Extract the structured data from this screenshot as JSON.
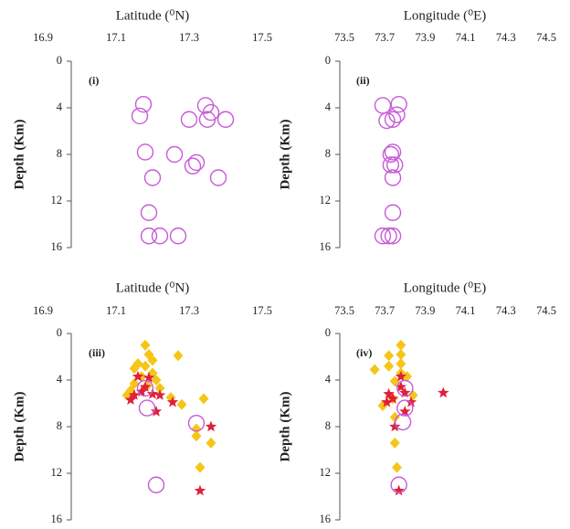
{
  "chart_data": [
    {
      "type": "scatter",
      "xlabel": "Latitude (⁰N)",
      "ylabel": "Depth (Km)",
      "annotation": "(i)",
      "xlim": [
        16.9,
        17.5
      ],
      "xticks": [
        16.9,
        17.1,
        17.3,
        17.5
      ],
      "ylim": [
        0,
        16
      ],
      "yticks": [
        0,
        4,
        8,
        12,
        16
      ],
      "y_inverted": true,
      "series": [
        {
          "color": "#c85ad8",
          "marker": "circle",
          "x": [
            17.175,
            17.165,
            17.345,
            17.36,
            17.35,
            17.4,
            17.3,
            17.18,
            17.26,
            17.32,
            17.31,
            17.2,
            17.38,
            17.19,
            17.19,
            17.22,
            17.27
          ],
          "values": [
            3.7,
            4.7,
            3.8,
            4.4,
            5.0,
            5.0,
            5.0,
            7.8,
            8.0,
            8.7,
            9.0,
            10.0,
            10.0,
            13.0,
            15.0,
            15.0,
            15.0
          ]
        }
      ]
    },
    {
      "type": "scatter",
      "xlabel": "Longitude (⁰E)",
      "ylabel": "Depth (Km)",
      "annotation": "(ii)",
      "xlim": [
        73.5,
        74.5
      ],
      "xticks": [
        73.5,
        73.7,
        73.9,
        74.1,
        74.3,
        74.5
      ],
      "ylim": [
        0,
        16
      ],
      "yticks": [
        0,
        4,
        8,
        12,
        16
      ],
      "y_inverted": true,
      "series": [
        {
          "color": "#c85ad8",
          "marker": "circle",
          "x": [
            73.77,
            73.69,
            73.76,
            73.74,
            73.71,
            73.74,
            73.73,
            73.75,
            73.73,
            73.74,
            73.74,
            73.69,
            73.72,
            73.74
          ],
          "values": [
            3.7,
            3.8,
            4.6,
            5.0,
            5.1,
            7.8,
            8.0,
            8.9,
            8.9,
            10.0,
            13.0,
            15.0,
            15.0,
            15.0
          ]
        }
      ]
    },
    {
      "type": "scatter",
      "xlabel": "Latitude (⁰N)",
      "ylabel": "Depth (Km)",
      "annotation": "(iii)",
      "xlim": [
        16.9,
        17.5
      ],
      "xticks": [
        16.9,
        17.1,
        17.3,
        17.5
      ],
      "ylim": [
        0,
        16
      ],
      "yticks": [
        0,
        4,
        8,
        12,
        16
      ],
      "y_inverted": true,
      "series": [
        {
          "color": "#f5c518",
          "marker": "diamond",
          "x": [
            17.18,
            17.19,
            17.27,
            17.2,
            17.16,
            17.18,
            17.15,
            17.2,
            17.17,
            17.21,
            17.15,
            17.185,
            17.14,
            17.22,
            17.13,
            17.25,
            17.34,
            17.28,
            17.32,
            17.32,
            17.36,
            17.33
          ],
          "values": [
            1.0,
            1.8,
            1.9,
            2.3,
            2.6,
            2.8,
            3.0,
            3.4,
            3.7,
            4.0,
            4.3,
            4.5,
            4.9,
            4.7,
            5.3,
            5.5,
            5.6,
            6.1,
            8.2,
            8.8,
            9.4,
            11.5
          ]
        },
        {
          "color": "#e0203a",
          "marker": "star",
          "x": [
            17.16,
            17.19,
            17.18,
            17.17,
            17.2,
            17.15,
            17.14,
            17.22,
            17.255,
            17.21,
            17.36,
            17.33
          ],
          "values": [
            3.7,
            3.8,
            4.6,
            5.0,
            5.2,
            5.3,
            5.7,
            5.3,
            5.9,
            6.7,
            8.0,
            13.5
          ]
        },
        {
          "color": "#c85ad8",
          "marker": "circle",
          "x": [
            17.18,
            17.185,
            17.32,
            17.21
          ],
          "values": [
            4.7,
            6.4,
            7.7,
            13.0
          ]
        }
      ]
    },
    {
      "type": "scatter",
      "xlabel": "Longitude (⁰E)",
      "ylabel": "Depth (Km)",
      "annotation": "(iv)",
      "xlim": [
        73.5,
        74.5
      ],
      "xticks": [
        73.5,
        73.7,
        73.9,
        74.1,
        74.3,
        74.5
      ],
      "ylim": [
        0,
        16
      ],
      "yticks": [
        0,
        4,
        8,
        12,
        16
      ],
      "y_inverted": true,
      "series": [
        {
          "color": "#f5c518",
          "marker": "diamond",
          "x": [
            73.78,
            73.78,
            73.72,
            73.78,
            73.72,
            73.78,
            73.65,
            73.81,
            73.75,
            73.84,
            73.74,
            73.69,
            73.75,
            73.75,
            73.76
          ],
          "values": [
            1.0,
            1.8,
            1.9,
            2.6,
            2.8,
            3.4,
            3.1,
            3.7,
            4.1,
            5.3,
            5.6,
            6.2,
            7.2,
            9.4,
            11.5
          ]
        },
        {
          "color": "#e0203a",
          "marker": "star",
          "x": [
            73.78,
            73.78,
            73.8,
            73.99,
            73.72,
            73.74,
            73.71,
            73.83,
            73.8,
            73.75,
            73.77
          ],
          "values": [
            3.7,
            4.6,
            5.1,
            5.1,
            5.2,
            5.6,
            5.9,
            5.9,
            6.7,
            8.0,
            13.5
          ]
        },
        {
          "color": "#c85ad8",
          "marker": "circle",
          "x": [
            73.8,
            73.8,
            73.79,
            73.77
          ],
          "values": [
            4.7,
            6.4,
            7.6,
            13.0
          ]
        }
      ]
    }
  ]
}
